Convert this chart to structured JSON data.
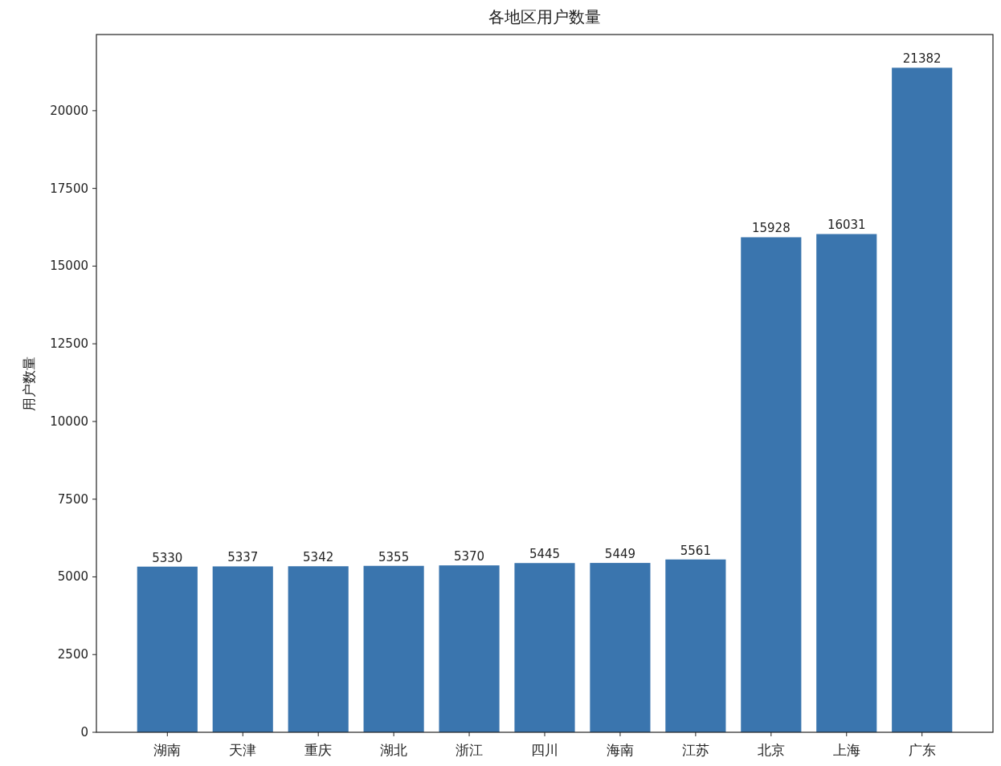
{
  "chart_data": {
    "type": "bar",
    "title": "各地区用户数量",
    "ylabel": "用户数量",
    "categories": [
      "湖南",
      "天津",
      "重庆",
      "湖北",
      "浙江",
      "四川",
      "海南",
      "江苏",
      "北京",
      "上海",
      "广东"
    ],
    "values": [
      5330,
      5337,
      5342,
      5355,
      5370,
      5445,
      5449,
      5561,
      15928,
      16031,
      21382
    ],
    "color": "#3a75ae",
    "ylim": [
      0,
      22451
    ],
    "yticks": [
      0,
      2500,
      5000,
      7500,
      10000,
      12500,
      15000,
      17500,
      20000
    ],
    "data_labels": true,
    "grid": false
  }
}
